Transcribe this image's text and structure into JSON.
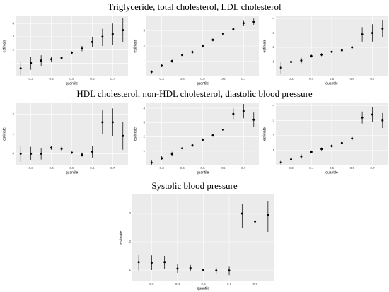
{
  "headings": [
    "Triglyceride, total cholesterol, LDL cholesterol",
    "HDL cholesterol, non-HDL cholesterol, diastolic blood pressure",
    "Systolic blood pressure"
  ],
  "chart_data": [
    {
      "type": "pointrange",
      "x_label": "quantile",
      "y_label": "estimate",
      "color": "#000000",
      "grid": true,
      "x": [
        0.25,
        0.3,
        0.35,
        0.4,
        0.45,
        0.5,
        0.55,
        0.6,
        0.65,
        0.7,
        0.75
      ],
      "xlim": [
        0.225,
        0.775
      ],
      "xticks": [
        0.3,
        0.4,
        0.5,
        0.6,
        0.7
      ],
      "ylim": [
        0,
        4.6
      ],
      "yticks": [
        1,
        2,
        3,
        4
      ],
      "values": [
        0.6,
        1.0,
        1.2,
        1.3,
        1.4,
        1.8,
        2.1,
        2.6,
        3.0,
        3.2,
        3.5
      ],
      "lower": [
        0.1,
        0.5,
        0.8,
        1.1,
        1.3,
        1.7,
        1.9,
        2.2,
        2.3,
        2.4,
        2.6
      ],
      "upper": [
        1.1,
        1.5,
        1.6,
        1.5,
        1.5,
        1.9,
        2.3,
        3.0,
        3.6,
        4.0,
        4.4
      ]
    },
    {
      "type": "pointrange",
      "x_label": "quantile",
      "y_label": "estimate",
      "color": "#000000",
      "grid": true,
      "x": [
        0.25,
        0.3,
        0.35,
        0.4,
        0.45,
        0.5,
        0.55,
        0.6,
        0.65,
        0.7,
        0.75
      ],
      "xlim": [
        0.225,
        0.775
      ],
      "xticks": [
        0.3,
        0.4,
        0.5,
        0.6,
        0.7
      ],
      "ylim": [
        0,
        4
      ],
      "yticks": [
        1,
        2,
        3
      ],
      "values": [
        0.3,
        0.7,
        1.0,
        1.4,
        1.6,
        2.0,
        2.4,
        2.8,
        3.1,
        3.5,
        3.6
      ],
      "lower": [
        0.2,
        0.6,
        0.9,
        1.3,
        1.5,
        1.9,
        2.3,
        2.7,
        3.0,
        3.3,
        3.4
      ],
      "upper": [
        0.4,
        0.8,
        1.1,
        1.5,
        1.7,
        2.1,
        2.5,
        2.9,
        3.2,
        3.7,
        3.8
      ]
    },
    {
      "type": "pointrange",
      "x_label": "quantile",
      "y_label": "estimate",
      "color": "#000000",
      "grid": true,
      "x": [
        0.25,
        0.3,
        0.35,
        0.4,
        0.45,
        0.5,
        0.55,
        0.6,
        0.65,
        0.7,
        0.75
      ],
      "xlim": [
        0.225,
        0.775
      ],
      "xticks": [
        0.3,
        0.4,
        0.5,
        0.6,
        0.7
      ],
      "ylim": [
        0,
        4.2
      ],
      "yticks": [
        1,
        2,
        3,
        4
      ],
      "values": [
        0.6,
        1.0,
        1.1,
        1.4,
        1.5,
        1.7,
        1.8,
        2.0,
        2.9,
        3.0,
        3.3
      ],
      "lower": [
        0.2,
        0.7,
        0.9,
        1.3,
        1.4,
        1.65,
        1.7,
        1.85,
        2.4,
        2.4,
        2.7
      ],
      "upper": [
        1.0,
        1.3,
        1.3,
        1.5,
        1.6,
        1.75,
        1.9,
        2.15,
        3.4,
        3.6,
        3.9
      ]
    },
    {
      "type": "pointrange",
      "x_label": "quantile",
      "y_label": "estimate",
      "color": "#000000",
      "grid": true,
      "x": [
        0.25,
        0.3,
        0.35,
        0.4,
        0.45,
        0.5,
        0.55,
        0.6,
        0.65,
        0.7,
        0.75
      ],
      "xlim": [
        0.225,
        0.775
      ],
      "xticks": [
        0.3,
        0.4,
        0.5,
        0.6,
        0.7
      ],
      "ylim": [
        -0.6,
        2.6
      ],
      "yticks": [
        0,
        1,
        2
      ],
      "values": [
        0.0,
        0.0,
        0.0,
        0.3,
        0.25,
        0.05,
        -0.05,
        0.1,
        1.6,
        1.6,
        0.9
      ],
      "lower": [
        -0.4,
        -0.35,
        -0.3,
        0.2,
        0.15,
        0.0,
        -0.15,
        -0.2,
        1.0,
        0.9,
        0.2
      ],
      "upper": [
        0.4,
        0.35,
        0.3,
        0.4,
        0.35,
        0.1,
        0.05,
        0.4,
        2.2,
        2.3,
        1.6
      ]
    },
    {
      "type": "pointrange",
      "x_label": "quantile",
      "y_label": "estimate",
      "color": "#000000",
      "grid": true,
      "x": [
        0.25,
        0.3,
        0.35,
        0.4,
        0.45,
        0.5,
        0.55,
        0.6,
        0.65,
        0.7,
        0.75
      ],
      "xlim": [
        0.225,
        0.775
      ],
      "xticks": [
        0.3,
        0.4,
        0.5,
        0.6,
        0.7
      ],
      "ylim": [
        0,
        4.4
      ],
      "yticks": [
        1,
        2,
        3,
        4
      ],
      "values": [
        0.2,
        0.5,
        0.8,
        1.2,
        1.4,
        1.8,
        2.1,
        2.5,
        3.6,
        3.8,
        3.2
      ],
      "lower": [
        0.05,
        0.35,
        0.65,
        1.1,
        1.3,
        1.7,
        2.0,
        2.35,
        3.2,
        3.3,
        2.7
      ],
      "upper": [
        0.35,
        0.65,
        0.95,
        1.3,
        1.5,
        1.9,
        2.2,
        2.65,
        4.0,
        4.3,
        3.7
      ]
    },
    {
      "type": "pointrange",
      "x_label": "quantile",
      "y_label": "estimate",
      "color": "#000000",
      "grid": true,
      "x": [
        0.25,
        0.3,
        0.35,
        0.4,
        0.45,
        0.5,
        0.55,
        0.6,
        0.65,
        0.7,
        0.75
      ],
      "xlim": [
        0.225,
        0.775
      ],
      "xticks": [
        0.3,
        0.4,
        0.5,
        0.6,
        0.7
      ],
      "ylim": [
        0,
        4.2
      ],
      "yticks": [
        1,
        2,
        3,
        4
      ],
      "values": [
        0.2,
        0.4,
        0.6,
        0.9,
        1.1,
        1.3,
        1.5,
        1.8,
        3.2,
        3.4,
        3.0
      ],
      "lower": [
        0.05,
        0.25,
        0.45,
        0.8,
        1.0,
        1.2,
        1.4,
        1.65,
        2.8,
        2.9,
        2.5
      ],
      "upper": [
        0.35,
        0.55,
        0.75,
        1.0,
        1.2,
        1.4,
        1.6,
        1.95,
        3.6,
        3.9,
        3.5
      ]
    },
    {
      "type": "pointrange",
      "x_label": "quantile",
      "y_label": "estimate",
      "color": "#000000",
      "grid": true,
      "x": [
        0.25,
        0.3,
        0.35,
        0.4,
        0.45,
        0.5,
        0.55,
        0.6,
        0.65,
        0.7,
        0.75
      ],
      "xlim": [
        0.225,
        0.775
      ],
      "xticks": [
        0.3,
        0.4,
        0.5,
        0.6,
        0.7
      ],
      "ylim": [
        0.6,
        3.7
      ],
      "yticks": [
        1,
        2,
        3
      ],
      "values": [
        1.28,
        1.26,
        1.28,
        1.05,
        1.07,
        1.0,
        0.98,
        0.98,
        3.0,
        2.72,
        2.95
      ],
      "lower": [
        0.98,
        1.0,
        1.05,
        0.9,
        0.95,
        0.95,
        0.88,
        0.82,
        2.5,
        2.25,
        2.35
      ],
      "upper": [
        1.55,
        1.52,
        1.5,
        1.2,
        1.18,
        1.05,
        1.08,
        1.14,
        3.35,
        3.25,
        3.45
      ]
    }
  ]
}
